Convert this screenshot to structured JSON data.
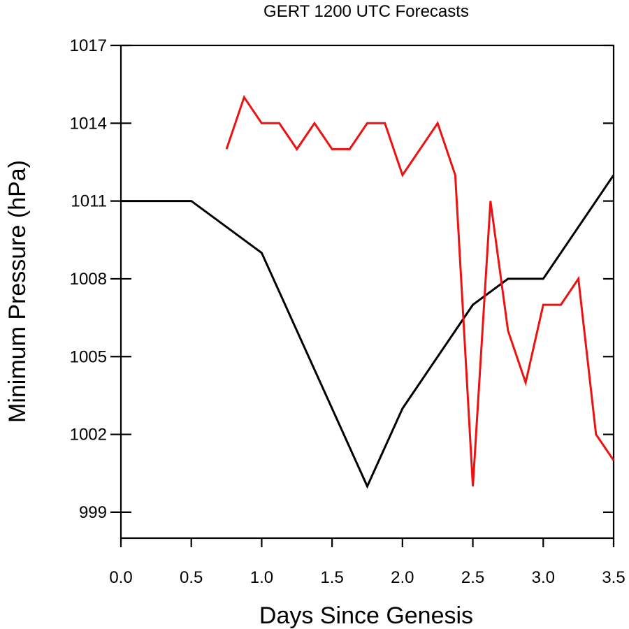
{
  "chart_data": {
    "type": "line",
    "title": "GERT 1200 UTC Forecasts",
    "xlabel": "Days Since Genesis",
    "ylabel": "Minimum Pressure (hPa)",
    "xlim": [
      0,
      3.5
    ],
    "ylim": [
      998,
      1017
    ],
    "xticks": [
      0.0,
      0.5,
      1.0,
      1.5,
      2.0,
      2.5,
      3.0,
      3.5
    ],
    "xtick_labels": [
      "0.0",
      "0.5",
      "1.0",
      "1.5",
      "2.0",
      "2.5",
      "3.0",
      "3.5"
    ],
    "yticks": [
      999,
      1002,
      1005,
      1008,
      1011,
      1014,
      1017
    ],
    "ytick_labels": [
      "999",
      "1002",
      "1005",
      "1008",
      "1011",
      "1014",
      "1017"
    ],
    "grid": false,
    "series": [
      {
        "color": "#000000",
        "x": [
          0.0,
          0.5,
          1.0,
          1.75,
          2.0,
          2.5,
          2.75,
          3.0,
          3.5
        ],
        "y": [
          1011,
          1011,
          1009,
          1000,
          1003,
          1007,
          1008,
          1008,
          1012
        ]
      },
      {
        "color": "#ee1111",
        "x": [
          0.75,
          0.875,
          1.0,
          1.125,
          1.25,
          1.375,
          1.5,
          1.625,
          1.75,
          1.875,
          2.0,
          2.25,
          2.375,
          2.5,
          2.625,
          2.75,
          2.875,
          3.0,
          3.125,
          3.25,
          3.375,
          3.5
        ],
        "y": [
          1013,
          1015,
          1014,
          1014,
          1013,
          1014,
          1013,
          1013,
          1014,
          1014,
          1012,
          1014,
          1012,
          1000,
          1011,
          1006,
          1004,
          1007,
          1007,
          1008,
          1002,
          1001
        ]
      }
    ]
  }
}
